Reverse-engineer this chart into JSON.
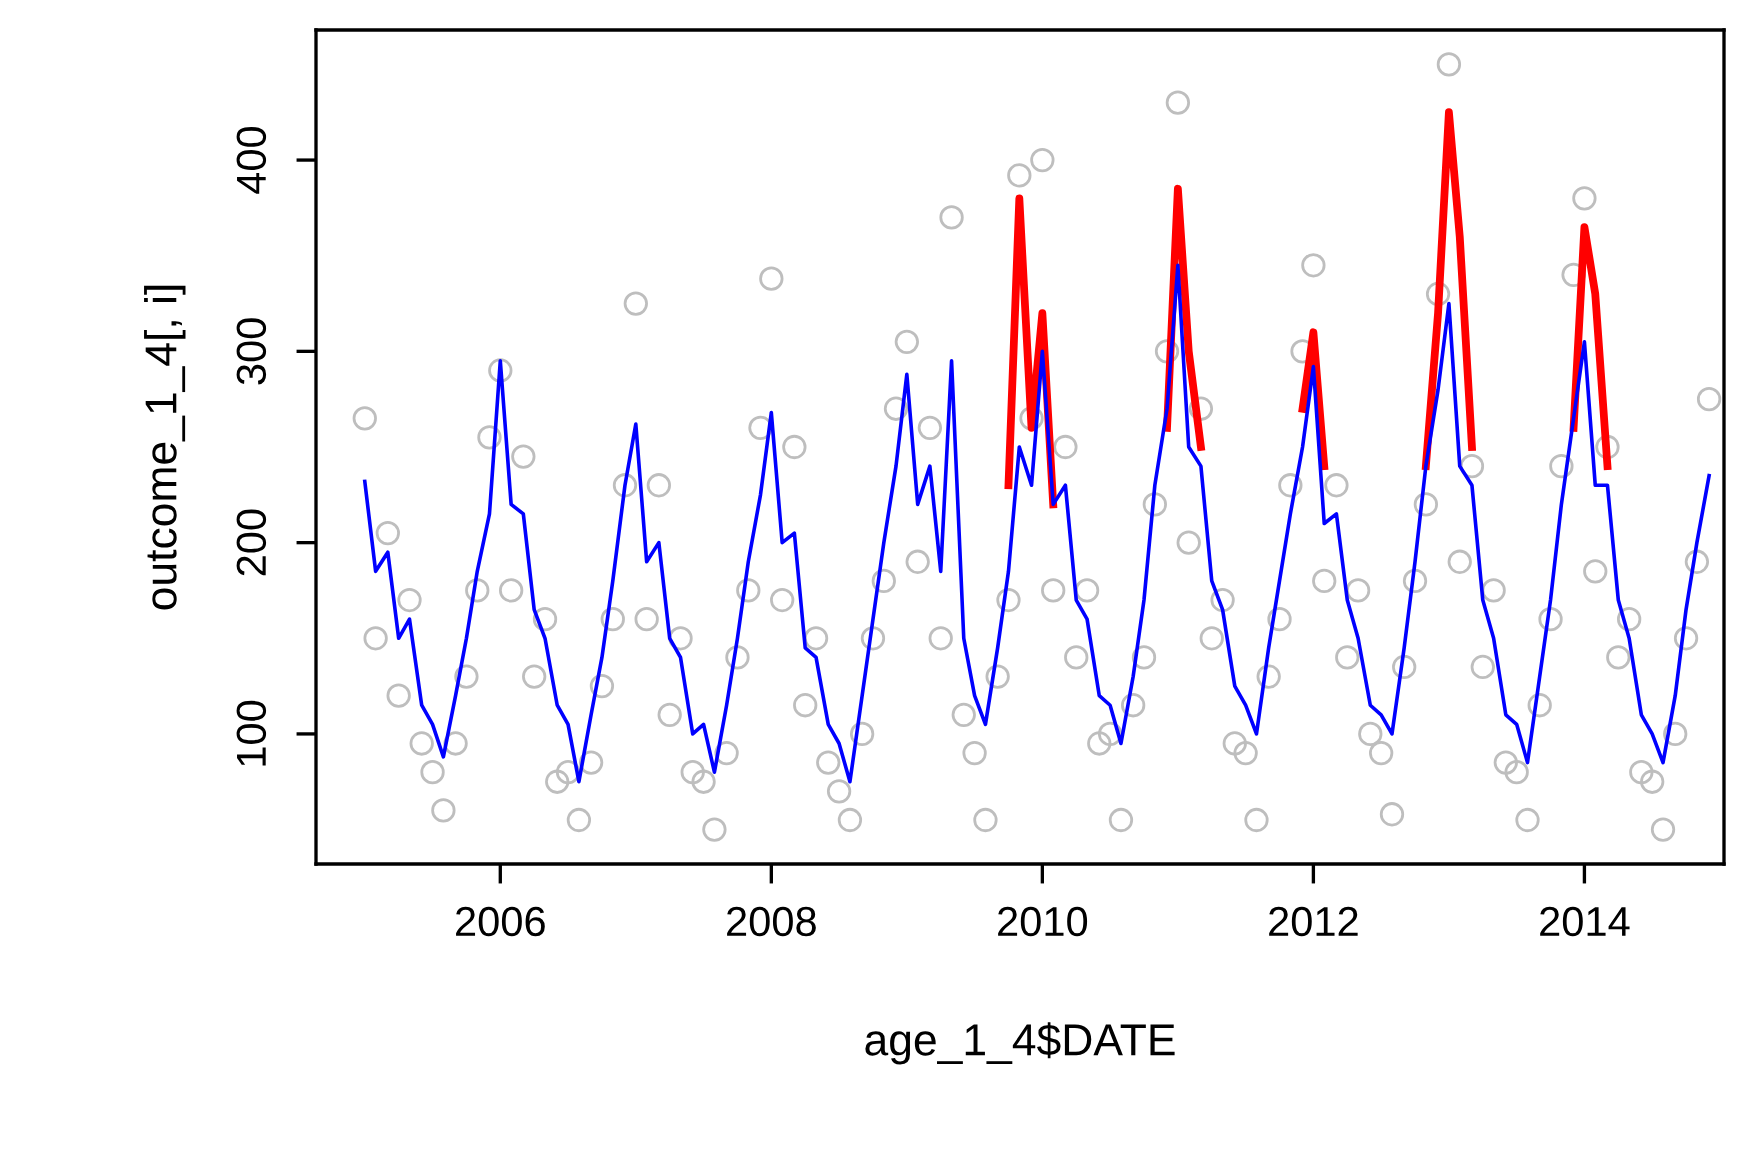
{
  "chart_data": {
    "type": "line",
    "xlabel": "age_1_4$DATE",
    "ylabel": "outcome_1_4[, i]",
    "xlim": [
      2004.64,
      2015.03
    ],
    "ylim": [
      32,
      468
    ],
    "xticks": [
      2006,
      2008,
      2010,
      2012,
      2014
    ],
    "yticks": [
      100,
      200,
      300,
      400
    ],
    "grid": false,
    "legend": false,
    "x": [
      2005.0,
      2005.08,
      2005.17,
      2005.25,
      2005.33,
      2005.42,
      2005.5,
      2005.58,
      2005.67,
      2005.75,
      2005.83,
      2005.92,
      2006.0,
      2006.08,
      2006.17,
      2006.25,
      2006.33,
      2006.42,
      2006.5,
      2006.58,
      2006.67,
      2006.75,
      2006.83,
      2006.92,
      2007.0,
      2007.08,
      2007.17,
      2007.25,
      2007.33,
      2007.42,
      2007.5,
      2007.58,
      2007.67,
      2007.75,
      2007.83,
      2007.92,
      2008.0,
      2008.08,
      2008.17,
      2008.25,
      2008.33,
      2008.42,
      2008.5,
      2008.58,
      2008.67,
      2008.75,
      2008.83,
      2008.92,
      2009.0,
      2009.08,
      2009.17,
      2009.25,
      2009.33,
      2009.42,
      2009.5,
      2009.58,
      2009.67,
      2009.75,
      2009.83,
      2009.92,
      2010.0,
      2010.08,
      2010.17,
      2010.25,
      2010.33,
      2010.42,
      2010.5,
      2010.58,
      2010.67,
      2010.75,
      2010.83,
      2010.92,
      2011.0,
      2011.08,
      2011.17,
      2011.25,
      2011.33,
      2011.42,
      2011.5,
      2011.58,
      2011.67,
      2011.75,
      2011.83,
      2011.92,
      2012.0,
      2012.08,
      2012.17,
      2012.25,
      2012.33,
      2012.42,
      2012.5,
      2012.58,
      2012.67,
      2012.75,
      2012.83,
      2012.92,
      2013.0,
      2013.08,
      2013.17,
      2013.25,
      2013.33,
      2013.42,
      2013.5,
      2013.58,
      2013.67,
      2013.75,
      2013.83,
      2013.92,
      2014.0,
      2014.08,
      2014.17,
      2014.25,
      2014.33,
      2014.42,
      2014.5,
      2014.58,
      2014.67,
      2014.75,
      2014.83,
      2014.92
    ],
    "series": [
      {
        "type": "scatter",
        "marker": "circle",
        "color": "#bebebe",
        "values": [
          265,
          150,
          205,
          120,
          170,
          95,
          80,
          60,
          95,
          130,
          175,
          255,
          290,
          175,
          245,
          130,
          160,
          75,
          80,
          55,
          85,
          125,
          160,
          230,
          325,
          160,
          230,
          110,
          150,
          80,
          75,
          50,
          90,
          140,
          175,
          260,
          338,
          170,
          250,
          115,
          150,
          85,
          70,
          55,
          100,
          150,
          180,
          270,
          305,
          190,
          260,
          150,
          370,
          110,
          90,
          55,
          130,
          170,
          392,
          265,
          400,
          175,
          250,
          140,
          175,
          95,
          100,
          55,
          115,
          140,
          220,
          300,
          430,
          200,
          270,
          150,
          170,
          95,
          90,
          55,
          130,
          160,
          230,
          300,
          345,
          180,
          230,
          140,
          175,
          100,
          90,
          58,
          135,
          180,
          220,
          330,
          450,
          190,
          240,
          135,
          175,
          85,
          80,
          55,
          115,
          160,
          240,
          340,
          380,
          185,
          250,
          140,
          160,
          80,
          75,
          50,
          100,
          150,
          190,
          275
        ]
      },
      {
        "type": "line",
        "color": "#ff0000",
        "x": [
          2009.75,
          2009.83,
          2009.92,
          2010.0,
          2010.08,
          2010.5,
          2010.92,
          2011.0,
          2011.08,
          2011.17,
          2011.5,
          2011.92,
          2012.0,
          2012.08,
          2012.5,
          2012.83,
          2012.92,
          2013.0,
          2013.08,
          2013.17,
          2013.5,
          2013.92,
          2014.0,
          2014.08,
          2014.17
        ],
        "values": [
          230,
          380,
          260,
          320,
          220,
          null,
          260,
          385,
          300,
          250,
          null,
          270,
          310,
          240,
          null,
          240,
          320,
          425,
          360,
          250,
          null,
          260,
          365,
          330,
          240
        ]
      },
      {
        "color": "#0000ff",
        "values": [
          232,
          185,
          195,
          150,
          160,
          115,
          105,
          88,
          120,
          150,
          185,
          215,
          295,
          220,
          215,
          165,
          150,
          115,
          105,
          75,
          110,
          140,
          180,
          230,
          262,
          190,
          200,
          150,
          140,
          100,
          105,
          80,
          115,
          150,
          190,
          225,
          268,
          200,
          205,
          145,
          140,
          105,
          95,
          75,
          120,
          160,
          200,
          240,
          288,
          220,
          240,
          185,
          295,
          150,
          120,
          105,
          145,
          185,
          250,
          230,
          300,
          220,
          230,
          170,
          160,
          120,
          115,
          95,
          130,
          170,
          230,
          270,
          345,
          250,
          240,
          180,
          165,
          125,
          115,
          100,
          145,
          180,
          215,
          250,
          292,
          210,
          215,
          170,
          150,
          115,
          110,
          100,
          145,
          190,
          240,
          280,
          325,
          240,
          230,
          170,
          150,
          110,
          105,
          85,
          130,
          170,
          220,
          265,
          305,
          230,
          230,
          170,
          150,
          110,
          100,
          85,
          120,
          165,
          200,
          235
        ]
      }
    ]
  }
}
